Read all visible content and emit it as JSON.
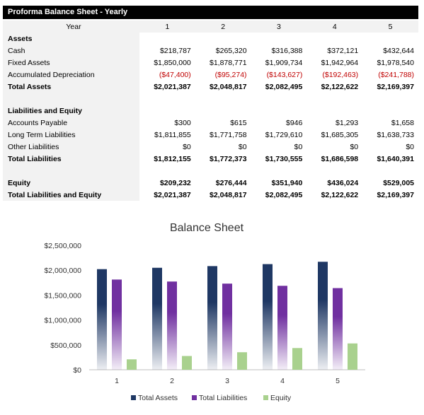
{
  "sheet": {
    "title": "Proforma Balance Sheet - Yearly",
    "year_label": "Year",
    "years": [
      "1",
      "2",
      "3",
      "4",
      "5"
    ],
    "rows": [
      {
        "label": "Assets",
        "style": "bold",
        "values": []
      },
      {
        "label": "Cash",
        "style": "normal",
        "values": [
          "$218,787",
          "$265,320",
          "$316,388",
          "$372,121",
          "$432,644"
        ]
      },
      {
        "label": "Fixed Assets",
        "style": "normal",
        "values": [
          "$1,850,000",
          "$1,878,771",
          "$1,909,734",
          "$1,942,964",
          "$1,978,540"
        ]
      },
      {
        "label": "Accumulated Depreciation",
        "style": "negative",
        "values": [
          "($47,400)",
          "($95,274)",
          "($143,627)",
          "($192,463)",
          "($241,788)"
        ]
      },
      {
        "label": "Total Assets",
        "style": "bold",
        "values": [
          "$2,021,387",
          "$2,048,817",
          "$2,082,495",
          "$2,122,622",
          "$2,169,397"
        ]
      },
      {
        "label": "",
        "style": "blank",
        "values": []
      },
      {
        "label": "Liabilities and Equity",
        "style": "bold",
        "values": []
      },
      {
        "label": "Accounts Payable",
        "style": "normal",
        "values": [
          "$300",
          "$615",
          "$946",
          "$1,293",
          "$1,658"
        ]
      },
      {
        "label": "Long Term Liabilities",
        "style": "normal",
        "values": [
          "$1,811,855",
          "$1,771,758",
          "$1,729,610",
          "$1,685,305",
          "$1,638,733"
        ]
      },
      {
        "label": "Other Liabilities",
        "style": "normal",
        "values": [
          "$0",
          "$0",
          "$0",
          "$0",
          "$0"
        ]
      },
      {
        "label": "Total Liabilities",
        "style": "bold",
        "values": [
          "$1,812,155",
          "$1,772,373",
          "$1,730,555",
          "$1,686,598",
          "$1,640,391"
        ]
      },
      {
        "label": "",
        "style": "blank",
        "values": []
      },
      {
        "label": "Equity",
        "style": "bold",
        "values": [
          "$209,232",
          "$276,444",
          "$351,940",
          "$436,024",
          "$529,005"
        ]
      },
      {
        "label": "Total Liabilities and Equity",
        "style": "bold",
        "values": [
          "$2,021,387",
          "$2,048,817",
          "$2,082,495",
          "$2,122,622",
          "$2,169,397"
        ]
      }
    ]
  },
  "chart_data": {
    "type": "bar",
    "title": "Balance Sheet",
    "categories": [
      "1",
      "2",
      "3",
      "4",
      "5"
    ],
    "series": [
      {
        "name": "Total Assets",
        "color": "#1f3864",
        "values": [
          2021387,
          2048817,
          2082495,
          2122622,
          2169397
        ]
      },
      {
        "name": "Total Liabilities",
        "color": "#7030a0",
        "values": [
          1812155,
          1772373,
          1730555,
          1686598,
          1640391
        ]
      },
      {
        "name": "Equity",
        "color": "#a9d18e",
        "values": [
          209232,
          276444,
          351940,
          436024,
          529005
        ]
      }
    ],
    "ylim": [
      0,
      2500000
    ],
    "yticks": [
      "$0",
      "$500,000",
      "$1,000,000",
      "$1,500,000",
      "$2,000,000",
      "$2,500,000"
    ],
    "grid": false,
    "legend_position": "bottom"
  }
}
